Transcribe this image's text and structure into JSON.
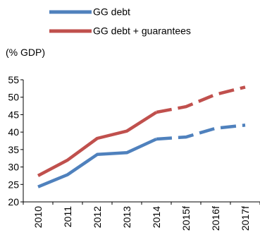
{
  "chart_data": {
    "type": "line",
    "unit_label": "(% GDP)",
    "categories": [
      "2010",
      "2011",
      "2012",
      "2013",
      "2014",
      "2015f",
      "2016f",
      "2017f"
    ],
    "forecast_from_index": 4,
    "ylim": [
      20,
      55
    ],
    "yticks": [
      20,
      25,
      30,
      35,
      40,
      45,
      50,
      55
    ],
    "grid": false,
    "legend_position": "top",
    "series": [
      {
        "name": "GG debt",
        "color": "#4f81bd",
        "values": [
          24.3,
          27.8,
          33.6,
          34.1,
          38.0,
          38.6,
          41.1,
          42.0
        ]
      },
      {
        "name": "GG debt + guarantees",
        "color": "#c0504d",
        "values": [
          27.5,
          32.0,
          38.2,
          40.3,
          45.7,
          47.3,
          50.8,
          52.9
        ]
      }
    ]
  }
}
